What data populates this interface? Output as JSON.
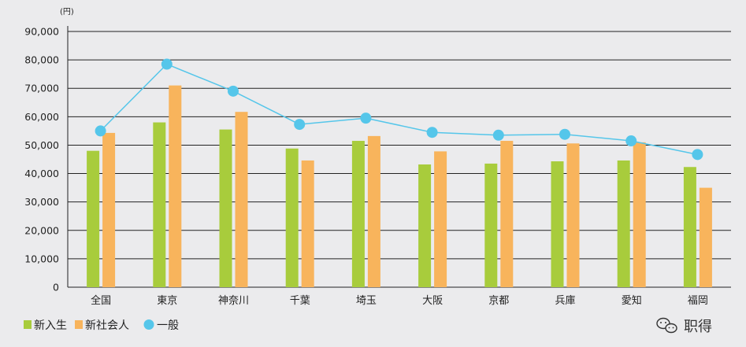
{
  "chart_data": {
    "type": "bar",
    "unit_label": "(円)",
    "categories": [
      "全国",
      "東京",
      "神奈川",
      "千葉",
      "埼玉",
      "大阪",
      "京都",
      "兵庫",
      "愛知",
      "福岡"
    ],
    "series": [
      {
        "name": "新入生",
        "type": "bar",
        "color": "#a8cc3c",
        "values": [
          48000,
          58000,
          55500,
          48800,
          51500,
          43200,
          43500,
          44300,
          44600,
          42300
        ]
      },
      {
        "name": "新社会人",
        "type": "bar",
        "color": "#f8b45c",
        "values": [
          54300,
          71000,
          61700,
          44600,
          53200,
          47800,
          51500,
          50600,
          51000,
          35000
        ]
      },
      {
        "name": "一般",
        "type": "line",
        "color": "#55c6ea",
        "values": [
          55000,
          78500,
          69000,
          57300,
          59500,
          54500,
          53500,
          53800,
          51500,
          46700
        ]
      }
    ],
    "ylim": [
      0,
      90000
    ],
    "yticks": [
      "0",
      "10,000",
      "20,000",
      "30,000",
      "40,000",
      "50,000",
      "60,000",
      "70,000",
      "80,000",
      "90,000"
    ],
    "grid": true,
    "legend_placement": "bottom-left"
  },
  "watermark": {
    "text": "职得"
  }
}
